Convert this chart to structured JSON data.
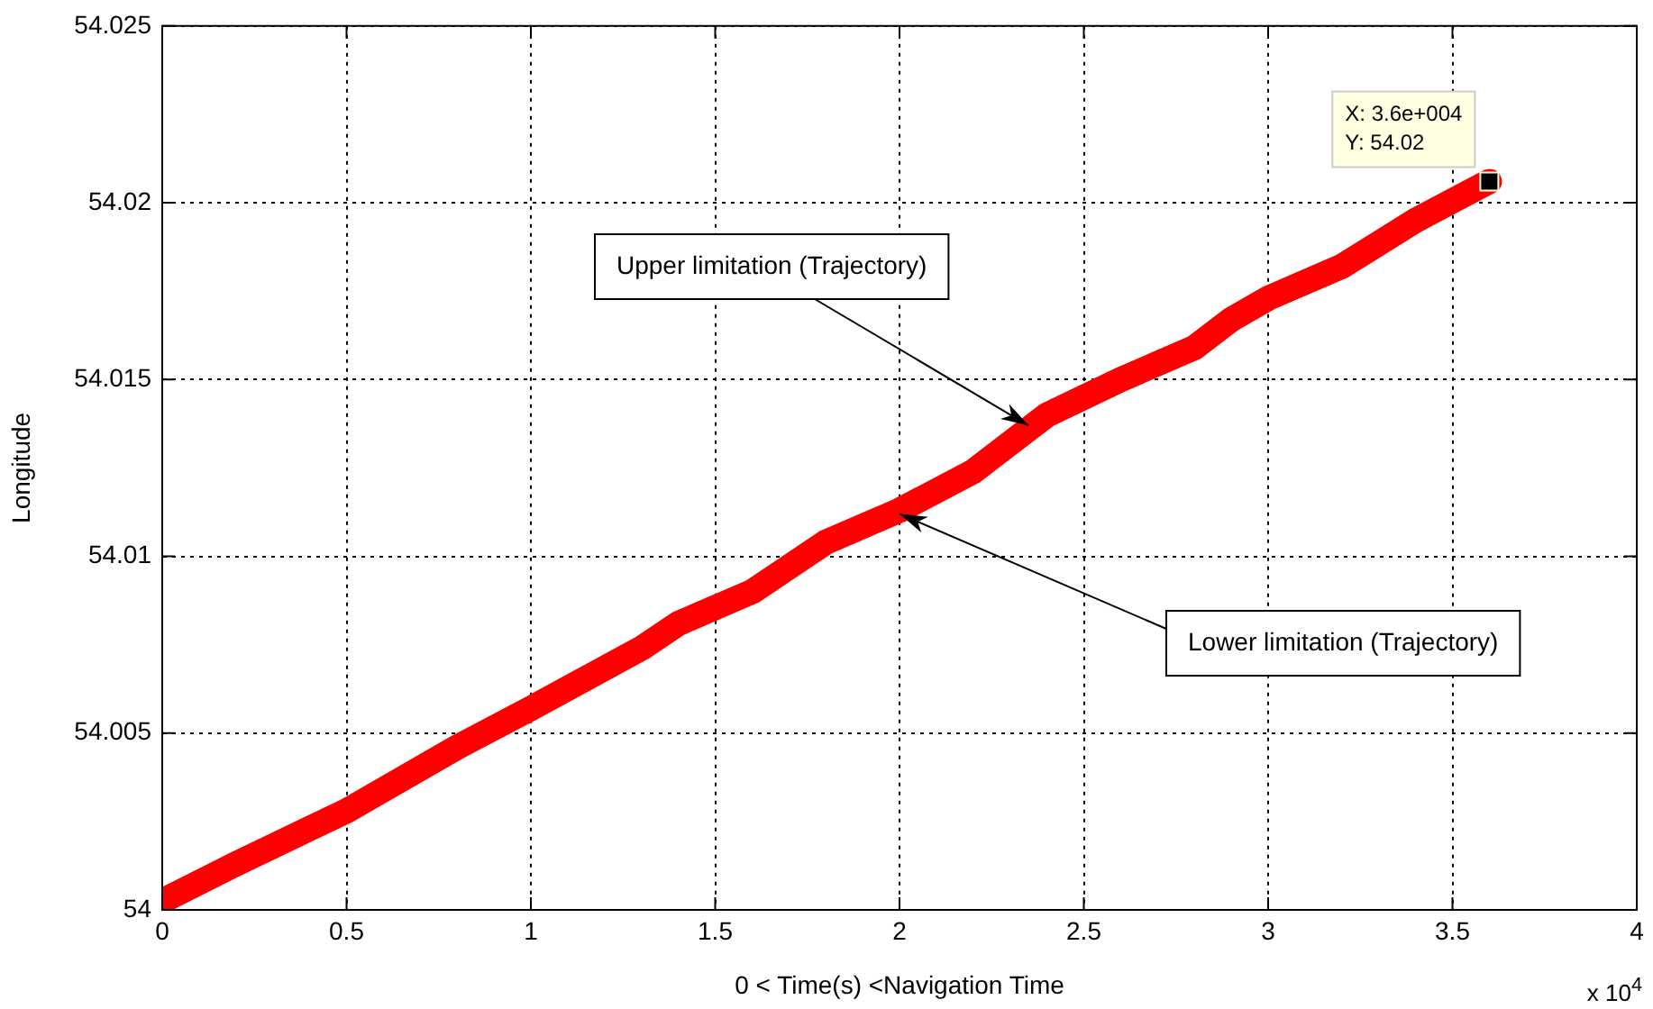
{
  "chart_data": {
    "type": "line",
    "xlabel": "0 < Time(s) <Navigation Time",
    "ylabel": "Longitude",
    "x": [
      0,
      0.2,
      0.4,
      0.5,
      0.8,
      1.0,
      1.3,
      1.4,
      1.6,
      1.8,
      2.0,
      2.2,
      2.4,
      2.6,
      2.8,
      2.9,
      3.0,
      3.2,
      3.4,
      3.6
    ],
    "series": [
      {
        "color": "#ff0000",
        "values": [
          54.00025,
          54.0013,
          54.0023,
          54.0028,
          54.0046,
          54.0057,
          54.0074,
          54.0081,
          54.009,
          54.0104,
          54.0113,
          54.0124,
          54.014,
          54.015,
          54.0159,
          54.0167,
          54.0173,
          54.0182,
          54.0195,
          54.0206
        ]
      }
    ],
    "xlim": [
      0,
      4
    ],
    "ylim": [
      54,
      54.025
    ],
    "xticks": [
      0,
      0.5,
      1,
      1.5,
      2,
      2.5,
      3,
      3.5,
      4
    ],
    "yticks": [
      54,
      54.005,
      54.01,
      54.015,
      54.02,
      54.025
    ],
    "grid": true,
    "marker": "none",
    "line_style": "solid",
    "annotations": [
      {
        "text": "X: 3.6e+004\nY: 54.02",
        "x": 3.6,
        "y": 54.0206
      },
      {
        "text": "Upper limitation (Trajectory)",
        "x": 2.35,
        "y": 54.0137
      },
      {
        "text": "Lower limitation (Trajectory)",
        "x": 2.0,
        "y": 54.0112
      },
      "x 10$^{4}$"
    ]
  }
}
